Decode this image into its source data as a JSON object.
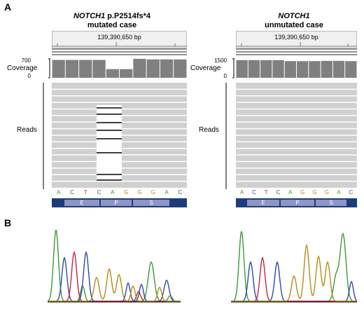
{
  "panel_a": "A",
  "panel_b": "B",
  "left": {
    "gene": "NOTCH1",
    "mutation": " p.P2514fs*4",
    "subtitle": "mutated case",
    "position": "139,390,650 bp",
    "coverage_label": "Coverage",
    "coverage_max": "700",
    "coverage_min": "0",
    "reads_label": "Reads"
  },
  "right": {
    "gene": "NOTCH1",
    "subtitle": "unmutated case",
    "position": "139,390,650 bp",
    "coverage_label": "Coverage",
    "coverage_max": "1500",
    "coverage_min": "0",
    "reads_label": "Reads"
  },
  "sequence": [
    "A",
    "C",
    "T",
    "C",
    "A",
    "G",
    "G",
    "G",
    "A",
    "C"
  ],
  "domains": [
    "E",
    "P",
    "S"
  ],
  "colors": {
    "A": "#3a9a3a",
    "C": "#2d4aa8",
    "G": "#b58a1a",
    "T": "#c0283a",
    "coverage": "#808080",
    "reads": "#d0d0d0",
    "domain_bar": "#1c3d7a",
    "domain": "#8f95c4"
  },
  "chart_data": [
    {
      "type": "bar",
      "categories": [
        "A",
        "C",
        "T",
        "C",
        "A",
        "G",
        "G",
        "G",
        "A",
        "C"
      ],
      "values": [
        660,
        660,
        660,
        660,
        320,
        320,
        700,
        680,
        680,
        680
      ],
      "ylim": [
        0,
        700
      ]
    },
    {
      "type": "bar",
      "categories": [
        "A",
        "C",
        "T",
        "C",
        "A",
        "G",
        "G",
        "G",
        "A",
        "C"
      ],
      "values": [
        1400,
        1400,
        1400,
        1400,
        1320,
        1320,
        1320,
        1340,
        1340,
        1320
      ],
      "ylim": [
        0,
        1500
      ]
    }
  ]
}
